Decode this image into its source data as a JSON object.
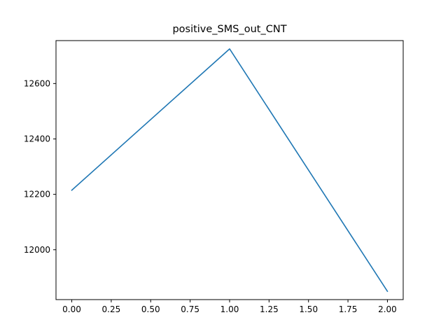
{
  "chart_data": {
    "type": "line",
    "title": "positive_SMS_out_CNT",
    "xlabel": "",
    "ylabel": "",
    "x": [
      0,
      1,
      2
    ],
    "series": [
      {
        "values": [
          12215,
          12725,
          11850
        ],
        "color": "#1f77b4"
      }
    ],
    "xlim": [
      -0.1,
      2.1
    ],
    "ylim": [
      11820,
      12755
    ],
    "xticks": [
      0.0,
      0.25,
      0.5,
      0.75,
      1.0,
      1.25,
      1.5,
      1.75,
      2.0
    ],
    "xtick_labels": [
      "0.00",
      "0.25",
      "0.50",
      "0.75",
      "1.00",
      "1.25",
      "1.50",
      "1.75",
      "2.00"
    ],
    "yticks": [
      12000,
      12200,
      12400,
      12600
    ],
    "ytick_labels": [
      "12000",
      "12200",
      "12400",
      "12600"
    ],
    "grid": false,
    "legend": "none"
  }
}
